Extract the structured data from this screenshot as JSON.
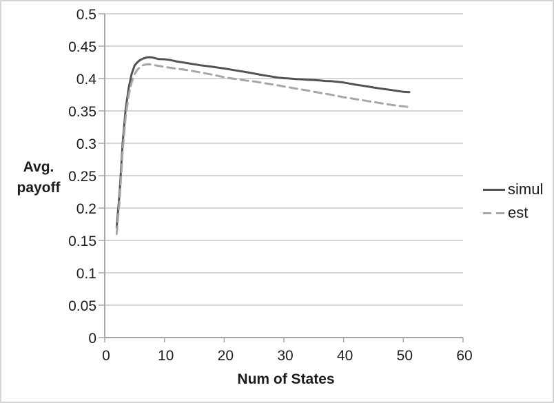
{
  "figure": {
    "background": "#ffffff",
    "border_color": "#d4d4d4"
  },
  "chart_data": {
    "type": "line",
    "title": "",
    "xlabel": "Num of States",
    "ylabel_lines": [
      "Avg.",
      "payoff"
    ],
    "xlim": [
      0,
      60
    ],
    "ylim": [
      0,
      0.5
    ],
    "xticks": [
      0,
      10,
      20,
      30,
      40,
      50,
      60
    ],
    "xtick_labels": [
      "0",
      "10",
      "20",
      "30",
      "40",
      "50",
      "60"
    ],
    "yticks": [
      0,
      0.05,
      0.1,
      0.15,
      0.2,
      0.25,
      0.3,
      0.35,
      0.4,
      0.45,
      0.5
    ],
    "ytick_labels": [
      "0",
      "0.05",
      "0.1",
      "0.15",
      "0.2",
      "0.25",
      "0.3",
      "0.35",
      "0.4",
      "0.45",
      "0.5"
    ],
    "grid": "horizontal",
    "grid_color": "#bdbdbd",
    "axis_color": "#a6a6a6",
    "text_color": "#1c1c1c",
    "legend_position": "right",
    "series": [
      {
        "name": "simul",
        "color": "#525252",
        "style": "solid",
        "points": [
          [
            2,
            0.17
          ],
          [
            2.5,
            0.225
          ],
          [
            3,
            0.3
          ],
          [
            3.5,
            0.352
          ],
          [
            4,
            0.385
          ],
          [
            4.5,
            0.407
          ],
          [
            5,
            0.42
          ],
          [
            5.5,
            0.4255
          ],
          [
            6,
            0.429
          ],
          [
            6.5,
            0.431
          ],
          [
            7,
            0.4325
          ],
          [
            7.5,
            0.433
          ],
          [
            8,
            0.4325
          ],
          [
            9,
            0.43
          ],
          [
            10,
            0.4298
          ],
          [
            11,
            0.4285
          ],
          [
            12,
            0.4265
          ],
          [
            13,
            0.425
          ],
          [
            14,
            0.4235
          ],
          [
            15,
            0.422
          ],
          [
            16,
            0.4205
          ],
          [
            17,
            0.4195
          ],
          [
            18,
            0.4182
          ],
          [
            19,
            0.4168
          ],
          [
            20,
            0.4155
          ],
          [
            21,
            0.414
          ],
          [
            22,
            0.4125
          ],
          [
            23,
            0.411
          ],
          [
            24,
            0.4095
          ],
          [
            25,
            0.4078
          ],
          [
            26,
            0.406
          ],
          [
            27,
            0.4045
          ],
          [
            28,
            0.403
          ],
          [
            29,
            0.4015
          ],
          [
            30,
            0.4005
          ],
          [
            31,
            0.4
          ],
          [
            32,
            0.3992
          ],
          [
            33,
            0.3988
          ],
          [
            34,
            0.3982
          ],
          [
            35,
            0.3978
          ],
          [
            36,
            0.397
          ],
          [
            37,
            0.3962
          ],
          [
            38,
            0.3958
          ],
          [
            39,
            0.395
          ],
          [
            40,
            0.3938
          ],
          [
            41,
            0.3922
          ],
          [
            42,
            0.3905
          ],
          [
            43,
            0.3892
          ],
          [
            44,
            0.3878
          ],
          [
            45,
            0.3862
          ],
          [
            46,
            0.3848
          ],
          [
            47,
            0.3835
          ],
          [
            48,
            0.3822
          ],
          [
            49,
            0.3808
          ],
          [
            50,
            0.3796
          ],
          [
            51,
            0.379
          ]
        ]
      },
      {
        "name": "est",
        "color": "#a6a6a6",
        "style": "dashed",
        "points": [
          [
            2,
            0.16
          ],
          [
            2.5,
            0.213
          ],
          [
            3,
            0.288
          ],
          [
            3.5,
            0.34
          ],
          [
            4,
            0.374
          ],
          [
            4.5,
            0.394
          ],
          [
            5,
            0.407
          ],
          [
            5.5,
            0.414
          ],
          [
            6,
            0.4185
          ],
          [
            6.5,
            0.4208
          ],
          [
            7,
            0.4218
          ],
          [
            7.5,
            0.422
          ],
          [
            8,
            0.4212
          ],
          [
            9,
            0.4196
          ],
          [
            10,
            0.418
          ],
          [
            11,
            0.4166
          ],
          [
            12,
            0.4152
          ],
          [
            13,
            0.414
          ],
          [
            14,
            0.4128
          ],
          [
            15,
            0.4112
          ],
          [
            16,
            0.4095
          ],
          [
            17,
            0.4078
          ],
          [
            18,
            0.406
          ],
          [
            19,
            0.404
          ],
          [
            20,
            0.402
          ],
          [
            21,
            0.4005
          ],
          [
            22,
            0.3992
          ],
          [
            23,
            0.3978
          ],
          [
            24,
            0.3965
          ],
          [
            25,
            0.3955
          ],
          [
            26,
            0.394
          ],
          [
            27,
            0.3925
          ],
          [
            28,
            0.391
          ],
          [
            29,
            0.3895
          ],
          [
            30,
            0.3878
          ],
          [
            31,
            0.3862
          ],
          [
            32,
            0.3845
          ],
          [
            33,
            0.383
          ],
          [
            34,
            0.3815
          ],
          [
            35,
            0.3798
          ],
          [
            36,
            0.378
          ],
          [
            37,
            0.3765
          ],
          [
            38,
            0.3748
          ],
          [
            39,
            0.373
          ],
          [
            40,
            0.3712
          ],
          [
            41,
            0.3698
          ],
          [
            42,
            0.3682
          ],
          [
            43,
            0.3668
          ],
          [
            44,
            0.3652
          ],
          [
            45,
            0.3638
          ],
          [
            46,
            0.3622
          ],
          [
            47,
            0.3608
          ],
          [
            48,
            0.3594
          ],
          [
            49,
            0.358
          ],
          [
            50,
            0.357
          ],
          [
            51,
            0.356
          ]
        ]
      }
    ]
  }
}
